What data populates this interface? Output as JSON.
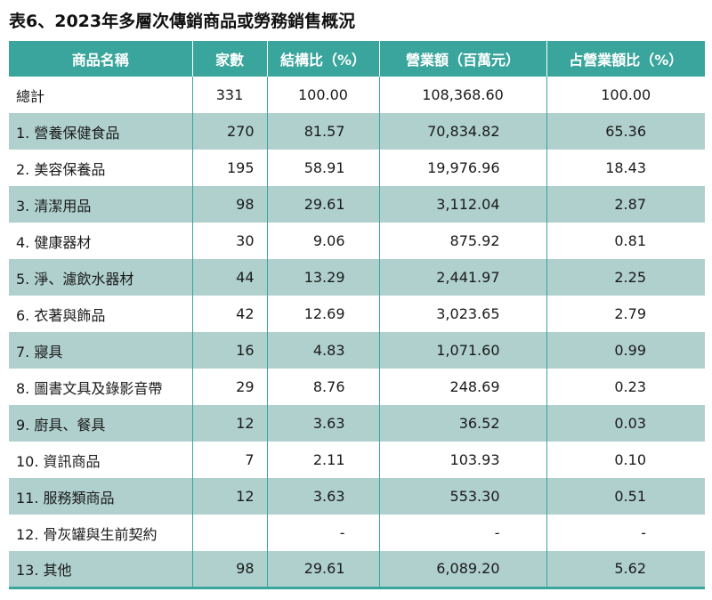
{
  "title": "表6、2023年多層次傳銷商品或勞務銷售概況",
  "headers": {
    "name": "商品名稱",
    "firms": "家數",
    "structure": "結構比（%）",
    "revenue": "營業額（百萬元）",
    "share": "占營業額比（%）"
  },
  "total": {
    "name": "總計",
    "firms": "331",
    "structure": "100.00",
    "revenue": "108,368.60",
    "share": "100.00"
  },
  "rows": [
    {
      "name": "1. 營養保健食品",
      "firms": "270",
      "structure": "81.57",
      "revenue": "70,834.82",
      "share": "65.36"
    },
    {
      "name": "2. 美容保養品",
      "firms": "195",
      "structure": "58.91",
      "revenue": "19,976.96",
      "share": "18.43"
    },
    {
      "name": "3. 清潔用品",
      "firms": "98",
      "structure": "29.61",
      "revenue": "3,112.04",
      "share": "2.87"
    },
    {
      "name": "4. 健康器材",
      "firms": "30",
      "structure": "9.06",
      "revenue": "875.92",
      "share": "0.81"
    },
    {
      "name": "5. 淨、濾飲水器材",
      "firms": "44",
      "structure": "13.29",
      "revenue": "2,441.97",
      "share": "2.25"
    },
    {
      "name": "6. 衣著與飾品",
      "firms": "42",
      "structure": "12.69",
      "revenue": "3,023.65",
      "share": "2.79"
    },
    {
      "name": "7. 寢具",
      "firms": "16",
      "structure": "4.83",
      "revenue": "1,071.60",
      "share": "0.99"
    },
    {
      "name": "8. 圖書文具及錄影音帶",
      "firms": "29",
      "structure": "8.76",
      "revenue": "248.69",
      "share": "0.23"
    },
    {
      "name": "9. 廚具、餐具",
      "firms": "12",
      "structure": "3.63",
      "revenue": "36.52",
      "share": "0.03"
    },
    {
      "name": "10. 資訊商品",
      "firms": "7",
      "structure": "2.11",
      "revenue": "103.93",
      "share": "0.10"
    },
    {
      "name": "11. 服務類商品",
      "firms": "12",
      "structure": "3.63",
      "revenue": "553.30",
      "share": "0.51"
    },
    {
      "name": "12. 骨灰罐與生前契約",
      "firms": "",
      "structure": "-",
      "revenue": "-",
      "share": "-"
    },
    {
      "name": "13. 其他",
      "firms": "98",
      "structure": "29.61",
      "revenue": "6,089.20",
      "share": "5.62"
    }
  ]
}
